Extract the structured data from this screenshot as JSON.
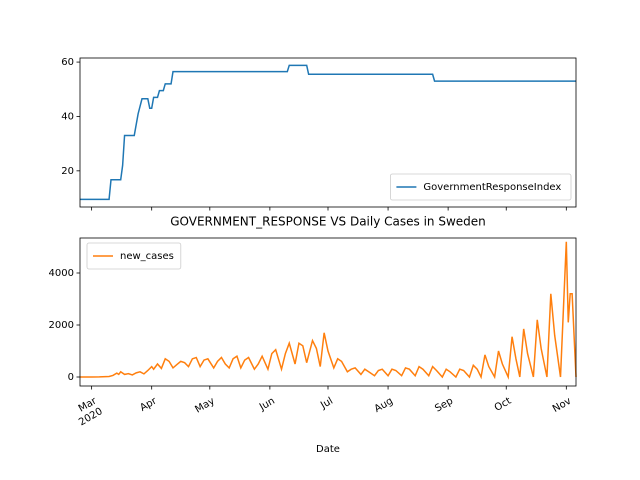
{
  "chart_data": [
    {
      "type": "line",
      "x": [
        "2020-02-24",
        "2020-03-10",
        "2020-03-11",
        "2020-03-16",
        "2020-03-17",
        "2020-03-18",
        "2020-03-19",
        "2020-03-23",
        "2020-03-25",
        "2020-03-27",
        "2020-03-30",
        "2020-03-31",
        "2020-04-01",
        "2020-04-02",
        "2020-04-04",
        "2020-04-05",
        "2020-04-07",
        "2020-04-08",
        "2020-04-11",
        "2020-04-12",
        "2020-06-10",
        "2020-06-11",
        "2020-06-20",
        "2020-06-21",
        "2020-08-24",
        "2020-08-25",
        "2020-11-06"
      ],
      "series": [
        {
          "name": "GovernmentResponseIndex",
          "color": "#1f77b4",
          "values": [
            9.5,
            9.5,
            16.7,
            16.7,
            22,
            33,
            33,
            33,
            41,
            46.5,
            46.5,
            43,
            43,
            47,
            47,
            49.5,
            49.5,
            52,
            52,
            56.5,
            56.5,
            58.8,
            58.8,
            55.5,
            55.5,
            53,
            53
          ]
        }
      ],
      "xlim": [
        "2020-02-24",
        "2020-11-06"
      ],
      "xticks": [
        "2020-03-01",
        "2020-04-01",
        "2020-05-01",
        "2020-06-01",
        "2020-07-01",
        "2020-08-01",
        "2020-09-01",
        "2020-10-01",
        "2020-11-01"
      ],
      "ylim": [
        6.7,
        61.5
      ],
      "yticks": [
        20,
        40,
        60
      ],
      "legend": "lower right"
    },
    {
      "type": "line",
      "title": "GOVERNMENT_RESPONSE VS Daily Cases in Sweden",
      "xlabel": "Date",
      "x": [
        "2020-02-24",
        "2020-03-01",
        "2020-03-05",
        "2020-03-10",
        "2020-03-12",
        "2020-03-14",
        "2020-03-15",
        "2020-03-16",
        "2020-03-18",
        "2020-03-20",
        "2020-03-22",
        "2020-03-24",
        "2020-03-26",
        "2020-03-28",
        "2020-03-30",
        "2020-04-01",
        "2020-04-02",
        "2020-04-04",
        "2020-04-06",
        "2020-04-08",
        "2020-04-10",
        "2020-04-12",
        "2020-04-14",
        "2020-04-16",
        "2020-04-18",
        "2020-04-20",
        "2020-04-22",
        "2020-04-24",
        "2020-04-26",
        "2020-04-28",
        "2020-04-30",
        "2020-05-03",
        "2020-05-05",
        "2020-05-07",
        "2020-05-09",
        "2020-05-11",
        "2020-05-13",
        "2020-05-15",
        "2020-05-17",
        "2020-05-19",
        "2020-05-21",
        "2020-05-24",
        "2020-05-26",
        "2020-05-28",
        "2020-05-31",
        "2020-06-02",
        "2020-06-04",
        "2020-06-07",
        "2020-06-09",
        "2020-06-11",
        "2020-06-14",
        "2020-06-16",
        "2020-06-18",
        "2020-06-20",
        "2020-06-23",
        "2020-06-25",
        "2020-06-27",
        "2020-06-29",
        "2020-07-01",
        "2020-07-04",
        "2020-07-06",
        "2020-07-08",
        "2020-07-11",
        "2020-07-13",
        "2020-07-15",
        "2020-07-18",
        "2020-07-20",
        "2020-07-22",
        "2020-07-25",
        "2020-07-27",
        "2020-07-29",
        "2020-08-01",
        "2020-08-03",
        "2020-08-05",
        "2020-08-08",
        "2020-08-10",
        "2020-08-12",
        "2020-08-15",
        "2020-08-17",
        "2020-08-19",
        "2020-08-22",
        "2020-08-24",
        "2020-08-26",
        "2020-08-29",
        "2020-08-31",
        "2020-09-02",
        "2020-09-05",
        "2020-09-07",
        "2020-09-09",
        "2020-09-12",
        "2020-09-14",
        "2020-09-16",
        "2020-09-18",
        "2020-09-20",
        "2020-09-22",
        "2020-09-25",
        "2020-09-27",
        "2020-09-29",
        "2020-10-02",
        "2020-10-04",
        "2020-10-06",
        "2020-10-08",
        "2020-10-10",
        "2020-10-12",
        "2020-10-15",
        "2020-10-17",
        "2020-10-19",
        "2020-10-22",
        "2020-10-24",
        "2020-10-26",
        "2020-10-29",
        "2020-11-01",
        "2020-11-02",
        "2020-11-03",
        "2020-11-04",
        "2020-11-06"
      ],
      "series": [
        {
          "name": "new_cases",
          "color": "#ff7f0e",
          "values": [
            0,
            0,
            5,
            20,
            60,
            150,
            100,
            200,
            100,
            130,
            80,
            160,
            200,
            120,
            250,
            400,
            300,
            500,
            330,
            700,
            600,
            350,
            480,
            600,
            550,
            400,
            700,
            750,
            400,
            650,
            700,
            350,
            600,
            750,
            500,
            350,
            700,
            800,
            350,
            650,
            750,
            300,
            500,
            800,
            300,
            900,
            1050,
            300,
            900,
            1300,
            500,
            1300,
            1200,
            550,
            1400,
            1100,
            400,
            1700,
            1000,
            350,
            700,
            600,
            200,
            300,
            350,
            100,
            300,
            200,
            50,
            250,
            300,
            50,
            300,
            250,
            50,
            350,
            300,
            50,
            400,
            300,
            50,
            400,
            250,
            0,
            300,
            200,
            0,
            300,
            250,
            0,
            450,
            300,
            0,
            850,
            400,
            0,
            1000,
            500,
            0,
            1550,
            700,
            0,
            1850,
            900,
            0,
            2200,
            1100,
            0,
            3200,
            1600,
            0,
            5200,
            2100,
            3200,
            3200,
            0
          ]
        }
      ],
      "xlim": [
        "2020-02-24",
        "2020-11-06"
      ],
      "xticks": [
        {
          "value": "2020-03-01",
          "label": "Mar\n2020"
        },
        {
          "value": "2020-04-01",
          "label": "Apr"
        },
        {
          "value": "2020-05-01",
          "label": "May"
        },
        {
          "value": "2020-06-01",
          "label": "Jun"
        },
        {
          "value": "2020-07-01",
          "label": "Jul"
        },
        {
          "value": "2020-08-01",
          "label": "Aug"
        },
        {
          "value": "2020-09-01",
          "label": "Sep"
        },
        {
          "value": "2020-10-01",
          "label": "Oct"
        },
        {
          "value": "2020-11-01",
          "label": "Nov"
        }
      ],
      "ylim": [
        -346,
        5346
      ],
      "yticks": [
        0,
        2000,
        4000
      ],
      "legend": "upper left"
    }
  ]
}
